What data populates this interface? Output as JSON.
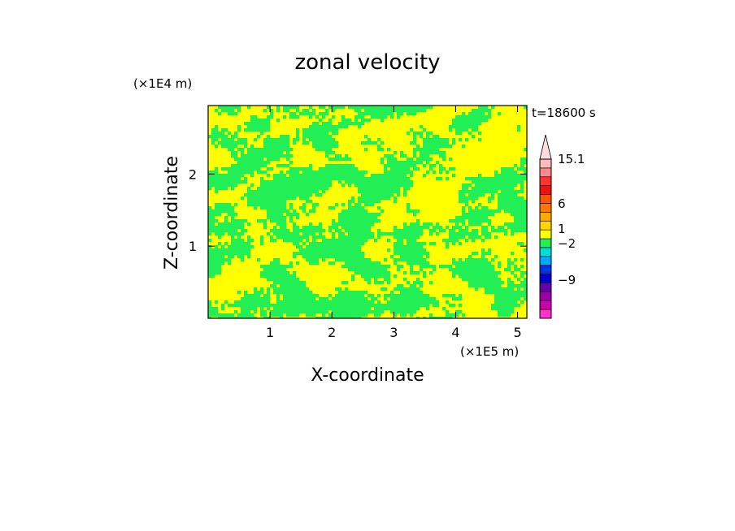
{
  "chart_data": {
    "type": "heatmap",
    "title": "zonal velocity",
    "xlabel": "X-coordinate",
    "ylabel": "Z-coordinate",
    "x_unit": "(×1E5 m)",
    "y_unit": "(×1E4 m)",
    "time_label": "t=18600 s",
    "xlim": [
      0,
      5.15
    ],
    "ylim": [
      0,
      2.95
    ],
    "x_ticks": [
      1,
      2,
      3,
      4,
      5
    ],
    "y_ticks": [
      1,
      2
    ],
    "x_tick_labels": [
      "1",
      "2",
      "3",
      "4",
      "5"
    ],
    "y_tick_labels": [
      "1",
      "2"
    ],
    "field_colors": [
      "#ffff00",
      "#22ee55"
    ],
    "field_fraction_green_approx": 0.5,
    "colorbar": {
      "levels": [
        {
          "color": "#ff33cc"
        },
        {
          "color": "#cc00aa"
        },
        {
          "color": "#9900aa"
        },
        {
          "color": "#6600aa"
        },
        {
          "color": "#0000cc"
        },
        {
          "color": "#0033dd"
        },
        {
          "color": "#00aaff"
        },
        {
          "color": "#00dddd"
        },
        {
          "color": "#22ee55"
        },
        {
          "color": "#ffff00"
        },
        {
          "color": "#ffd700"
        },
        {
          "color": "#ffaa00"
        },
        {
          "color": "#ff7700"
        },
        {
          "color": "#ff5500"
        },
        {
          "color": "#ee1111"
        },
        {
          "color": "#ff3333"
        },
        {
          "color": "#ff8888"
        },
        {
          "color": "#ffbbbb"
        }
      ],
      "overflow_color": "#ffdddd",
      "labels": [
        "15.1",
        "6",
        "1",
        "−2",
        "−9"
      ]
    }
  }
}
